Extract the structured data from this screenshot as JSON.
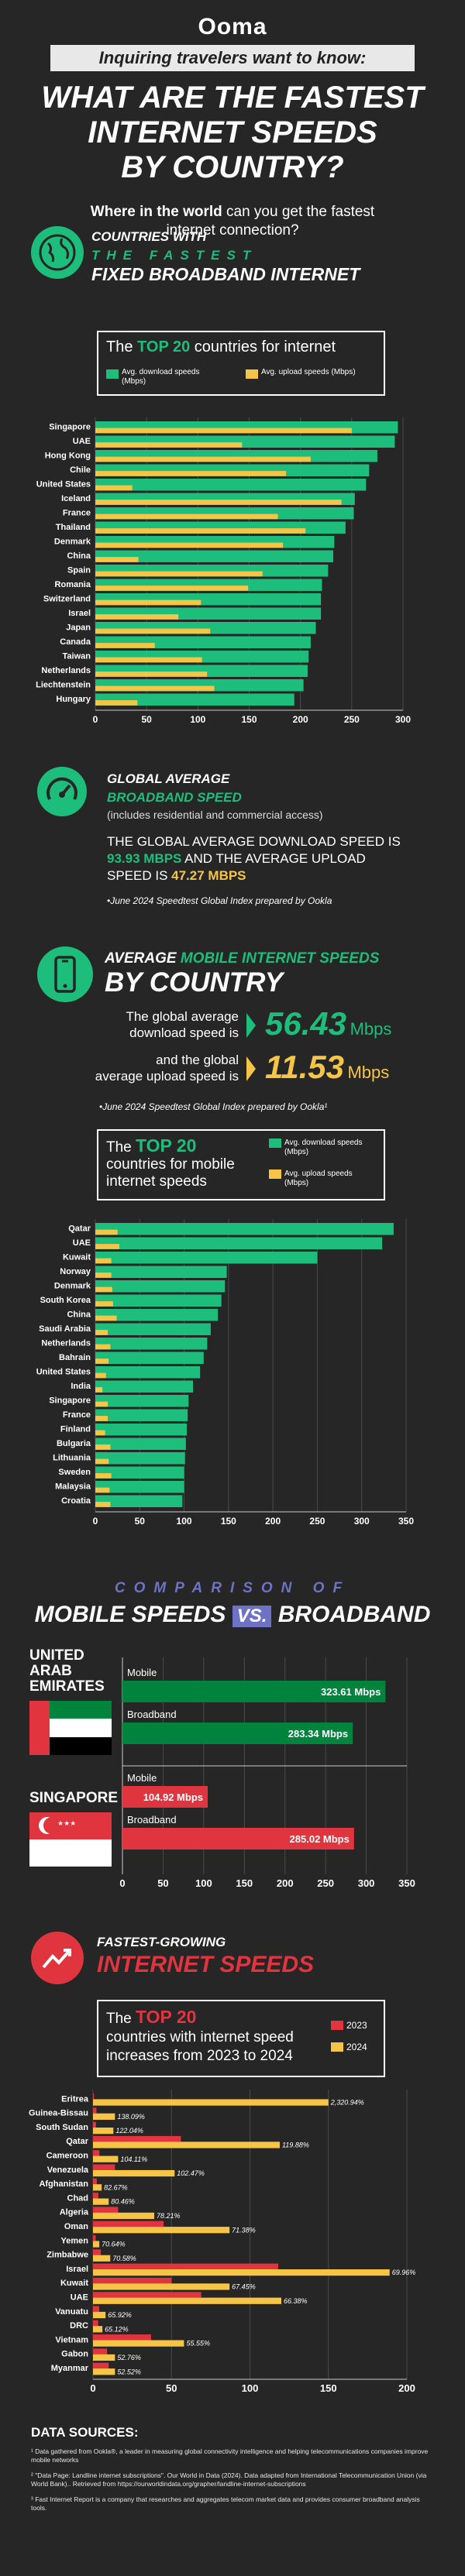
{
  "header": {
    "logo": "Ooma",
    "banner": "Inquiring travelers want to know:",
    "title_lines": [
      "WHAT ARE THE FASTEST",
      "INTERNET SPEEDS",
      "BY COUNTRY?"
    ],
    "subtitle_bold": "Where in the world",
    "subtitle_rest": " can you get the fastest",
    "subtitle_line2": "internet connection?"
  },
  "fixed": {
    "head_line1": "COUNTRIES WITH",
    "head_line2": "THE FASTEST",
    "head_line3": "FIXED BROADBAND INTERNET",
    "box_pre": "The ",
    "box_top": "TOP 20",
    "box_post": " countries for internet",
    "legend_download": "Avg. download speeds (Mbps)",
    "legend_upload": "Avg. upload speeds (Mbps)",
    "icon": "globe-icon"
  },
  "global_fixed": {
    "head_line1": "GLOBAL AVERAGE",
    "head_line2": "BROADBAND SPEED",
    "note": "(includes residential and commercial access)",
    "text1": "THE GLOBAL AVERAGE DOWNLOAD SPEED IS",
    "download_value": "93.93 MBPS",
    "text2": " AND THE AVERAGE UPLOAD",
    "text3": "SPEED IS ",
    "upload_value": "47.27 MBPS",
    "source": "•June 2024 Speedtest Global Index prepared by Ookla",
    "icon": "speedometer-icon"
  },
  "mobile": {
    "head_line1_a": "AVERAGE ",
    "head_line1_b": "MOBILE INTERNET SPEEDS",
    "head_line2": "BY COUNTRY",
    "dl_text1": "The global average",
    "dl_text2": "download speed is",
    "dl_value": "56.43",
    "dl_unit": "Mbps",
    "ul_text1": "and the global",
    "ul_text2": "average upload speed is",
    "ul_value": "11.53",
    "ul_unit": "Mbps",
    "source": "•June 2024 Speedtest Global Index prepared by Ookla¹",
    "box_pre": "The ",
    "box_top": "TOP 20",
    "box_line1_post": "",
    "box_line2": "countries for mobile",
    "box_line3": "internet speeds",
    "legend_download": "Avg. download speeds (Mbps)",
    "legend_upload": "Avg. upload speeds (Mbps)",
    "icon": "smartphone-icon"
  },
  "comparison": {
    "head_line1": "COMPARISON OF",
    "head_mobile": "MOBILE SPEEDS",
    "head_vs": "VS.",
    "head_broadband": "BROADBAND",
    "uae_name_lines": [
      "UNITED",
      "ARAB",
      "EMIRATES"
    ],
    "singapore_name": "SINGAPORE",
    "mobile_label": "Mobile",
    "broadband_label": "Broadband",
    "uae_mobile_label": "323.61 Mbps",
    "uae_broadband_label": "283.34 Mbps",
    "sg_mobile_label": "104.92 Mbps",
    "sg_broadband_label": "285.02 Mbps"
  },
  "growth": {
    "head_line1": "FASTEST-GROWING",
    "head_line2": "INTERNET SPEEDS",
    "box_pre": "The ",
    "box_top": "TOP 20",
    "box_line2": "countries with internet speed",
    "box_line3": "increases from 2023 to 2024",
    "legend_2023": "2023",
    "legend_2024": "2024",
    "icon": "trending-up-icon"
  },
  "sources": {
    "title": "DATA SOURCES:",
    "items": [
      "¹ Data gathered from Ookla®, a leader in measuring global connectivity intelligence and helping telecommunications companies improve mobile networks",
      "² \"Data Page: Landline internet subscriptions\". Our World in Data (2024). Data adapted from International Telecommunication Union (via World Bank).. Retrieved from https://ourworldindata.org/grapher/landline-internet-subscriptions",
      "³ Fast Internet Report is a company that researches and aggregates telecom market data and provides consumer broadband analysis tools."
    ]
  },
  "chart_data": [
    {
      "id": "fixed-broadband",
      "type": "bar",
      "orientation": "horizontal",
      "categories": [
        "Singapore",
        "UAE",
        "Hong Kong",
        "Chile",
        "United States",
        "Iceland",
        "France",
        "Thailand",
        "Denmark",
        "China",
        "Spain",
        "Romania",
        "Switzerland",
        "Israel",
        "Japan",
        "Canada",
        "Taiwan",
        "Netherlands",
        "Liechtenstein",
        "Hungary"
      ],
      "series": [
        {
          "name": "Avg. download speeds (Mbps)",
          "values": [
            295,
            292,
            275,
            267,
            264,
            253,
            252,
            244,
            233,
            232,
            227,
            221,
            220,
            220,
            215,
            210,
            208,
            207,
            203,
            194
          ],
          "color": "#1dbd7c"
        },
        {
          "name": "Avg. upload speeds (Mbps)",
          "values": [
            250,
            143,
            210,
            186,
            36,
            240,
            178,
            205,
            183,
            42,
            163,
            149,
            103,
            81,
            112,
            58,
            104,
            109,
            116,
            41
          ],
          "color": "#f7c545"
        }
      ],
      "xlim": [
        0,
        300
      ],
      "ticks": [
        0,
        50,
        100,
        150,
        200,
        250,
        300
      ]
    },
    {
      "id": "mobile-speeds",
      "type": "bar",
      "orientation": "horizontal",
      "categories": [
        "Qatar",
        "UAE",
        "Kuwait",
        "Norway",
        "Denmark",
        "South Korea",
        "China",
        "Saudi Arabia",
        "Netherlands",
        "Bahrain",
        "United States",
        "India",
        "Singapore",
        "France",
        "Finland",
        "Bulgaria",
        "Lithuania",
        "Sweden",
        "Malaysia",
        "Croatia"
      ],
      "series": [
        {
          "name": "Avg. download speeds (Mbps)",
          "values": [
            336,
            323,
            250,
            148,
            146,
            142,
            138,
            130,
            126,
            122,
            118,
            110,
            105,
            104,
            103,
            102,
            101,
            100,
            100,
            98
          ],
          "color": "#1dbd7c"
        },
        {
          "name": "Avg. upload speeds (Mbps)",
          "values": [
            25,
            27,
            18,
            18,
            19,
            20,
            24,
            14,
            17,
            15,
            12,
            8,
            14,
            14,
            11,
            17,
            15,
            18,
            16,
            17
          ],
          "color": "#f7c545"
        }
      ],
      "xlim": [
        0,
        350
      ],
      "ticks": [
        0,
        50,
        100,
        150,
        200,
        250,
        300,
        350
      ]
    },
    {
      "id": "mobile-vs-broadband",
      "type": "bar",
      "orientation": "horizontal",
      "categories": [
        "United Arab Emirates Mobile",
        "United Arab Emirates Broadband",
        "Singapore Mobile",
        "Singapore Broadband"
      ],
      "values": [
        323.61,
        283.34,
        104.92,
        285.02
      ],
      "xlim": [
        0,
        350
      ],
      "ticks": [
        0,
        50,
        100,
        150,
        200,
        250,
        300,
        350
      ]
    },
    {
      "id": "fastest-growing",
      "type": "bar",
      "orientation": "horizontal",
      "categories": [
        "Eritrea",
        "Guinea-Bissau",
        "South Sudan",
        "Qatar",
        "Cameroon",
        "Venezuela",
        "Afghanistan",
        "Chad",
        "Algeria",
        "Oman",
        "Yemen",
        "Zimbabwe",
        "Israel",
        "Kuwait",
        "UAE",
        "Vanuatu",
        "DRC",
        "Vietnam",
        "Gabon",
        "Myanmar"
      ],
      "series": [
        {
          "name": "2023",
          "values": [
            0.6,
            2.2,
            1.9,
            56,
            4.1,
            14,
            2.4,
            3.4,
            16,
            45,
            1.7,
            5,
            118,
            50,
            69,
            4,
            3.3,
            37,
            9,
            10
          ],
          "color": "#e0343f"
        },
        {
          "name": "2024",
          "values": [
            150,
            14,
            13,
            119,
            16,
            52,
            5.5,
            10,
            39,
            87,
            4,
            11,
            189,
            87,
            120,
            8,
            6,
            58,
            14,
            14
          ],
          "color": "#f7c545"
        }
      ],
      "value_labels": [
        "2,320.94%",
        "138.09%",
        "122.04%",
        "119.88%",
        "104.11%",
        "102.47%",
        "82.67%",
        "80.46%",
        "78.21%",
        "71.38%",
        "70.64%",
        "70.58%",
        "69.96%",
        "67.45%",
        "66.38%",
        "65.92%",
        "65.12%",
        "55.55%",
        "52.76%",
        "52.52%"
      ],
      "xlim": [
        0,
        200
      ],
      "ticks": [
        0,
        50,
        100,
        150,
        200
      ]
    }
  ]
}
